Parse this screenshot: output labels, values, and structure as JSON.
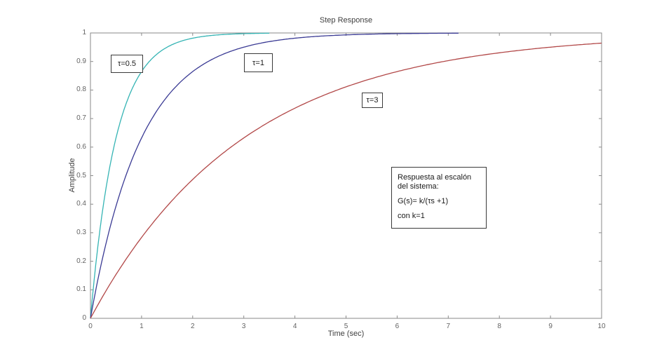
{
  "chart_data": {
    "type": "line",
    "title": "Step Response",
    "xlabel": "Time (sec)",
    "ylabel": "Amplitude",
    "xlim": [
      0,
      10
    ],
    "ylim": [
      0,
      1
    ],
    "grid": false,
    "legend": "none (boxed curve labels on plot)",
    "xticks": [
      "0",
      "1",
      "2",
      "3",
      "4",
      "5",
      "6",
      "7",
      "8",
      "9",
      "10"
    ],
    "yticks": [
      "0",
      "0.1",
      "0.2",
      "0.3",
      "0.4",
      "0.5",
      "0.6",
      "0.7",
      "0.8",
      "0.9",
      "1"
    ],
    "formula": "y(t) = 1 - exp(-t/tau), step response of G(s)=k/(tau*s+1), k=1",
    "series": [
      {
        "name": "tau=0.5",
        "tau": 0.5,
        "t_end": 3.5,
        "color": "#35b4b4"
      },
      {
        "name": "tau=1",
        "tau": 1,
        "t_end": 7.2,
        "color": "#3a3a94"
      },
      {
        "name": "tau=3",
        "tau": 3,
        "t_end": 10,
        "color": "#b24848"
      }
    ],
    "sample_points": {
      "note": "values readable on plot",
      "tau_0_5": [
        [
          0,
          0
        ],
        [
          0.5,
          0.63
        ],
        [
          1,
          0.86
        ],
        [
          2,
          0.98
        ],
        [
          3.5,
          1.0
        ]
      ],
      "tau_1": [
        [
          0,
          0
        ],
        [
          1,
          0.63
        ],
        [
          2,
          0.86
        ],
        [
          3,
          0.95
        ],
        [
          7,
          1.0
        ]
      ],
      "tau_3": [
        [
          0,
          0
        ],
        [
          1,
          0.28
        ],
        [
          3,
          0.63
        ],
        [
          5,
          0.81
        ],
        [
          7,
          0.9
        ],
        [
          10,
          0.96
        ]
      ]
    }
  },
  "annotations": {
    "tau05_label": "τ=0.5",
    "tau1_label": "τ=1",
    "tau3_label": "τ=3",
    "note": {
      "line1": "Respuesta al escalón del sistema:",
      "line2": "G(s)= k/(τs +1)",
      "line3": "con k=1"
    }
  },
  "colors": {
    "axis_box": "#8a8a8a",
    "tick_label": "#636363",
    "title_text": "#3f3f3f",
    "annotation_border": "#3a3a3a",
    "background": "#ffffff"
  }
}
